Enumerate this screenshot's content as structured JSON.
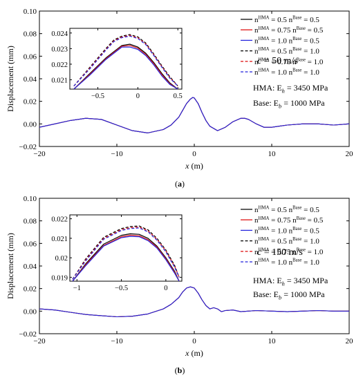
{
  "chart_data": [
    {
      "type": "line",
      "panel_label": "(a)",
      "xlabel": "x (m)",
      "ylabel": "Displacement (mm)",
      "xlim": [
        -20,
        20
      ],
      "ylim": [
        -0.02,
        0.1
      ],
      "xticks": [
        -20,
        -10,
        0,
        10,
        20
      ],
      "xtick_labels": [
        "−20",
        "−10",
        "0",
        "10",
        "20"
      ],
      "yticks": [
        -0.02,
        0,
        0.02,
        0.04,
        0.06,
        0.08,
        0.1
      ],
      "ytick_labels": [
        "−0.02",
        "0.00",
        "0.02",
        "0.04",
        "0.06",
        "0.08",
        "0.10"
      ],
      "speed_text": "c = 50 m/s",
      "moduli_text": [
        "HMA: E_h = 3450 MPa",
        "Base: E_b = 1000 MPa"
      ],
      "legend_position": "top-right",
      "legend": [
        {
          "label": "n^HMA = 0.5  n^Base = 0.5",
          "color": "#000000",
          "dash": "solid"
        },
        {
          "label": "n^HMA = 0.75  n^Base = 0.5",
          "color": "#e02020",
          "dash": "solid"
        },
        {
          "label": "n^HMA = 1.0  n^Base = 0.5",
          "color": "#2222dd",
          "dash": "solid"
        },
        {
          "label": "n^HMA = 0.5  n^Base = 1.0",
          "color": "#000000",
          "dash": "dashed"
        },
        {
          "label": "n^HMA = 0.75  n^Base = 1.0",
          "color": "#e02020",
          "dash": "dashed"
        },
        {
          "label": "n^HMA = 1.0  n^Base = 1.0",
          "color": "#2222dd",
          "dash": "dashed"
        }
      ],
      "main_curve": {
        "x": [
          -20,
          -18,
          -16,
          -14,
          -12,
          -10,
          -8,
          -6,
          -4,
          -3,
          -2,
          -1.5,
          -1,
          -0.5,
          -0.2,
          0,
          0.5,
          1,
          1.5,
          2,
          3,
          4,
          5,
          6,
          6.5,
          7,
          8,
          9,
          10,
          11,
          12,
          14,
          16,
          18,
          20
        ],
        "y": [
          -0.003,
          0.0,
          0.003,
          0.005,
          0.004,
          -0.001,
          -0.006,
          -0.008,
          -0.005,
          -0.001,
          0.006,
          0.012,
          0.018,
          0.022,
          0.0235,
          0.023,
          0.018,
          0.01,
          0.003,
          -0.002,
          -0.006,
          -0.003,
          0.002,
          0.005,
          0.005,
          0.004,
          0.0,
          -0.003,
          -0.003,
          -0.002,
          -0.001,
          0.0,
          0.0,
          -0.001,
          0.0
        ]
      },
      "inset": {
        "xlim": [
          -0.85,
          0.55
        ],
        "ylim": [
          0.0204,
          0.0243
        ],
        "xticks": [
          -0.5,
          0,
          0.5
        ],
        "xtick_labels": [
          "−0.5",
          "0",
          "0.5"
        ],
        "yticks": [
          0.021,
          0.022,
          0.023,
          0.024
        ],
        "ytick_labels": [
          "0.021",
          "0.022",
          "0.023",
          "0.024"
        ],
        "x": [
          -0.8,
          -0.6,
          -0.4,
          -0.3,
          -0.2,
          -0.1,
          0.0,
          0.1,
          0.2,
          0.3,
          0.4,
          0.5
        ],
        "series": [
          {
            "color": "#000000",
            "dash": "solid",
            "values": [
              0.0204,
              0.0214,
              0.0224,
              0.0228,
              0.0232,
              0.02328,
              0.0231,
              0.0227,
              0.0221,
              0.0214,
              0.0208,
              0.0204
            ]
          },
          {
            "color": "#e02020",
            "dash": "solid",
            "values": [
              0.0204,
              0.02135,
              0.02235,
              0.02275,
              0.02315,
              0.0232,
              0.02303,
              0.02262,
              0.02203,
              0.02133,
              0.02075,
              0.0204
            ]
          },
          {
            "color": "#2222dd",
            "dash": "solid",
            "values": [
              0.0204,
              0.0213,
              0.0223,
              0.0227,
              0.0231,
              0.0231,
              0.02295,
              0.02255,
              0.02195,
              0.02125,
              0.0207,
              0.0204
            ]
          },
          {
            "color": "#000000",
            "dash": "dashed",
            "values": [
              0.0206,
              0.0218,
              0.023,
              0.02355,
              0.0238,
              0.0239,
              0.02375,
              0.02335,
              0.02265,
              0.0219,
              0.0212,
              0.0206
            ]
          },
          {
            "color": "#e02020",
            "dash": "dashed",
            "values": [
              0.0206,
              0.02175,
              0.02295,
              0.0235,
              0.02375,
              0.02385,
              0.0237,
              0.0233,
              0.0226,
              0.02185,
              0.02115,
              0.0206
            ]
          },
          {
            "color": "#2222dd",
            "dash": "dashed",
            "values": [
              0.0206,
              0.0217,
              0.0229,
              0.02345,
              0.0237,
              0.0238,
              0.02365,
              0.02325,
              0.02255,
              0.0218,
              0.0211,
              0.0206
            ]
          }
        ]
      }
    },
    {
      "type": "line",
      "panel_label": "(b)",
      "xlabel": "x (m)",
      "ylabel": "Displacement (mm)",
      "xlim": [
        -20,
        20
      ],
      "ylim": [
        -0.02,
        0.1
      ],
      "xticks": [
        -20,
        -10,
        0,
        10,
        20
      ],
      "xtick_labels": [
        "−20",
        "−10",
        "0",
        "10",
        "20"
      ],
      "yticks": [
        -0.02,
        0,
        0.02,
        0.04,
        0.06,
        0.08,
        0.1
      ],
      "ytick_labels": [
        "−0.02",
        "0.00",
        "0.02",
        "0.04",
        "0.06",
        "0.08",
        "0.10"
      ],
      "speed_text": "c = 150 m/s",
      "moduli_text": [
        "HMA: E_h = 3450 MPa",
        "Base: E_b = 1000 MPa"
      ],
      "legend_position": "top-right",
      "legend": [
        {
          "label": "n^HMA = 0.5  n^Base = 0.5",
          "color": "#000000",
          "dash": "solid"
        },
        {
          "label": "n^HMA = 0.75  n^Base = 0.5",
          "color": "#e02020",
          "dash": "solid"
        },
        {
          "label": "n^HMA = 1.0  n^Base = 0.5",
          "color": "#2222dd",
          "dash": "solid"
        },
        {
          "label": "n^HMA = 0.5  n^Base = 1.0",
          "color": "#000000",
          "dash": "dashed"
        },
        {
          "label": "n^HMA = 0.75  n^Base = 1.0",
          "color": "#e02020",
          "dash": "dashed"
        },
        {
          "label": "n^HMA = 1.0  n^Base = 1.0",
          "color": "#2222dd",
          "dash": "dashed"
        }
      ],
      "main_curve": {
        "x": [
          -20,
          -18,
          -16,
          -14,
          -12,
          -10,
          -8,
          -6,
          -4,
          -3,
          -2,
          -1.5,
          -1,
          -0.5,
          0,
          0.5,
          1,
          1.5,
          2,
          2.5,
          3,
          3.5,
          4,
          5,
          6,
          8,
          10,
          12,
          14,
          16,
          18,
          20
        ],
        "y": [
          0.002,
          0.001,
          -0.001,
          -0.003,
          -0.004,
          -0.005,
          -0.0045,
          -0.0025,
          0.002,
          0.006,
          0.012,
          0.017,
          0.0205,
          0.0215,
          0.0205,
          0.016,
          0.01,
          0.005,
          0.002,
          0.003,
          0.002,
          -0.0005,
          0.0005,
          0.001,
          -0.0005,
          0.0005,
          0.0,
          -0.0005,
          0.0,
          0.0005,
          0.0,
          0.0
        ]
      },
      "inset": {
        "xlim": [
          -1.08,
          0.18
        ],
        "ylim": [
          0.0188,
          0.0222
        ],
        "xticks": [
          -1,
          -0.5,
          0
        ],
        "xtick_labels": [
          "−1",
          "−0.5",
          "0"
        ],
        "yticks": [
          0.019,
          0.02,
          0.021,
          0.022
        ],
        "ytick_labels": [
          "0.019",
          "0.02",
          "0.021",
          "0.022"
        ],
        "x": [
          -1.05,
          -0.9,
          -0.7,
          -0.5,
          -0.4,
          -0.3,
          -0.2,
          -0.1,
          0.0,
          0.1,
          0.15
        ],
        "series": [
          {
            "color": "#000000",
            "dash": "solid",
            "values": [
              0.0188,
              0.0197,
              0.0207,
              0.02115,
              0.02123,
              0.0212,
              0.021,
              0.0206,
              0.02,
              0.0193,
              0.0188
            ]
          },
          {
            "color": "#e02020",
            "dash": "solid",
            "values": [
              0.0188,
              0.01965,
              0.02063,
              0.02108,
              0.02116,
              0.02113,
              0.02093,
              0.02055,
              0.01995,
              0.01925,
              0.0188
            ]
          },
          {
            "color": "#2222dd",
            "dash": "solid",
            "values": [
              0.0188,
              0.0196,
              0.0206,
              0.02103,
              0.0211,
              0.02108,
              0.02088,
              0.0205,
              0.0199,
              0.0192,
              0.0188
            ]
          },
          {
            "color": "#000000",
            "dash": "dashed",
            "values": [
              0.0189,
              0.01995,
              0.02105,
              0.0215,
              0.0216,
              0.02163,
              0.02143,
              0.021,
              0.0204,
              0.0196,
              0.019
            ]
          },
          {
            "color": "#e02020",
            "dash": "dashed",
            "values": [
              0.0189,
              0.0199,
              0.021,
              0.02145,
              0.02155,
              0.02158,
              0.02138,
              0.02095,
              0.02035,
              0.01955,
              0.019
            ]
          },
          {
            "color": "#2222dd",
            "dash": "dashed",
            "values": [
              0.0189,
              0.01985,
              0.02095,
              0.0214,
              0.0215,
              0.02153,
              0.02133,
              0.0209,
              0.0203,
              0.0195,
              0.019
            ]
          }
        ]
      }
    }
  ]
}
